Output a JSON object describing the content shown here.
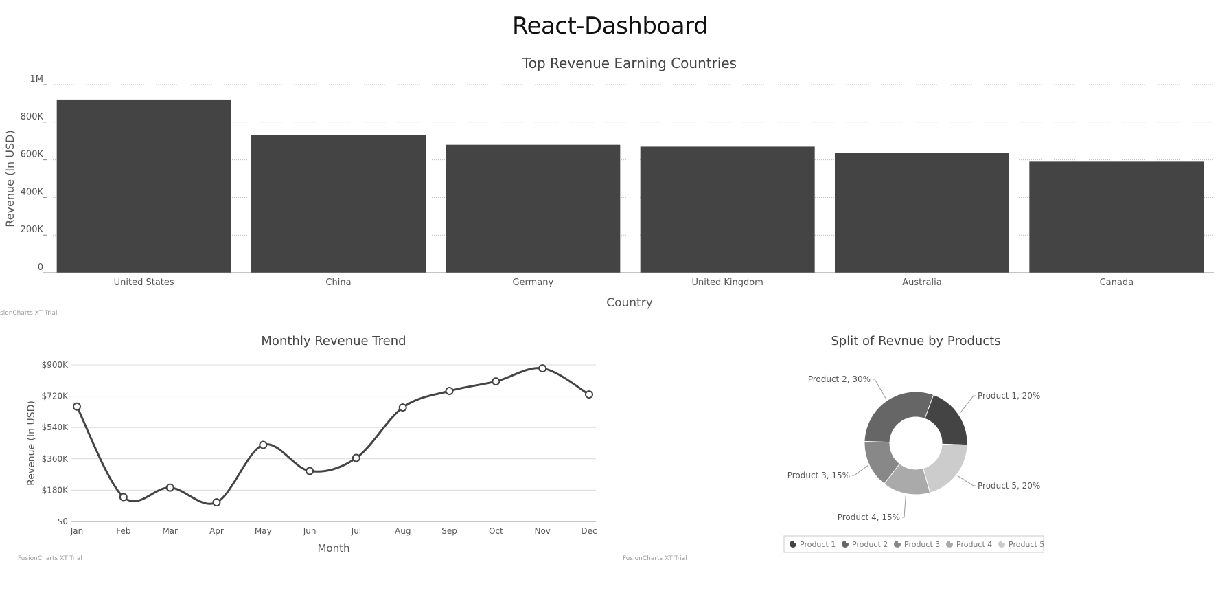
{
  "page": {
    "title": "React-Dashboard"
  },
  "trial_label": "FusionCharts XT Trial",
  "trial_label_clipped": "sionCharts XT Trial",
  "colors": {
    "bar": "#444444",
    "line": "#444444",
    "grid": "#d6d6d6",
    "text": "#555555",
    "pie": [
      "#444444",
      "#666666",
      "#888888",
      "#aaaaaa",
      "#cccccc"
    ]
  },
  "chart_data": [
    {
      "type": "bar",
      "title": "Top Revenue Earning Countries",
      "xlabel": "Country",
      "ylabel": "Revenue (In USD)",
      "categories": [
        "United States",
        "China",
        "Germany",
        "United Kingdom",
        "Australia",
        "Canada"
      ],
      "values": [
        920000,
        730000,
        680000,
        670000,
        635000,
        590000
      ],
      "ylim": [
        0,
        1000000
      ],
      "yticks": [
        "0",
        "200K",
        "400K",
        "600K",
        "800K",
        "1M"
      ],
      "grid": true
    },
    {
      "type": "line",
      "title": "Monthly Revenue Trend",
      "xlabel": "Month",
      "ylabel": "Revenue (In USD)",
      "categories": [
        "Jan",
        "Feb",
        "Mar",
        "Apr",
        "May",
        "Jun",
        "Jul",
        "Aug",
        "Sep",
        "Oct",
        "Nov",
        "Dec"
      ],
      "values": [
        660000,
        140000,
        195000,
        110000,
        440000,
        290000,
        365000,
        655000,
        750000,
        805000,
        880000,
        730000
      ],
      "ylim": [
        0,
        900000
      ],
      "yticks": [
        "$0",
        "$180K",
        "$360K",
        "$540K",
        "$720K",
        "$900K"
      ],
      "grid": true,
      "smooth": true
    },
    {
      "type": "pie",
      "subtype": "doughnut",
      "title": "Split of Revnue by Products",
      "slices": [
        {
          "label": "Product 1",
          "value": 20,
          "data_label": "Product 1, 20%"
        },
        {
          "label": "Product 2",
          "value": 30,
          "data_label": "Product 2, 30%"
        },
        {
          "label": "Product 3",
          "value": 15,
          "data_label": "Product 3, 15%"
        },
        {
          "label": "Product 4",
          "value": 15,
          "data_label": "Product 4, 15%"
        },
        {
          "label": "Product 5",
          "value": 20,
          "data_label": "Product 5, 20%"
        }
      ],
      "legend": "bottom"
    }
  ]
}
